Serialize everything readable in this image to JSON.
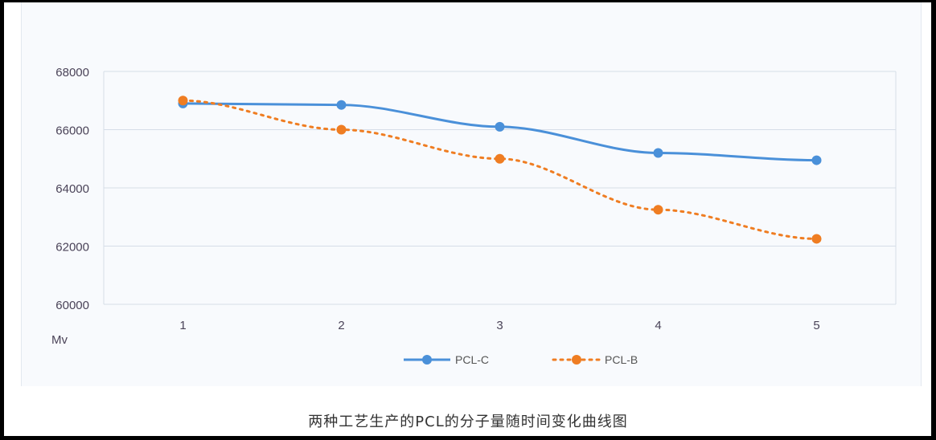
{
  "chart_data": {
    "type": "line",
    "title": "两种工艺生产的PCL的分子量随时间变化曲线图",
    "xlabel": "",
    "ylabel": "Mv",
    "categories": [
      "1",
      "2",
      "3",
      "4",
      "5"
    ],
    "ylim": [
      60000,
      68000
    ],
    "yticks": [
      "60000",
      "62000",
      "64000",
      "66000",
      "68000"
    ],
    "grid": true,
    "legend_position": "bottom",
    "series": [
      {
        "name": "PCL-C",
        "color": "#4a90d9",
        "style": "solid",
        "values": [
          66900,
          66850,
          66100,
          65200,
          64950
        ]
      },
      {
        "name": "PCL-B",
        "color": "#ef7d22",
        "style": "dotted",
        "values": [
          67000,
          66000,
          65000,
          63250,
          62250
        ]
      }
    ]
  }
}
